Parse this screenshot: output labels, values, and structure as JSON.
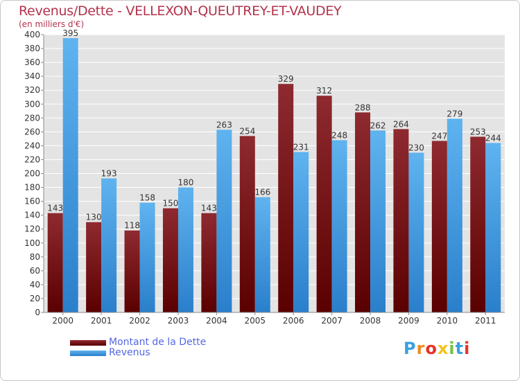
{
  "chart_data": {
    "type": "bar",
    "title": "Revenus/Dette - VELLEXON-QUEUTREY-ET-VAUDEY",
    "subtitle": "(en milliers d'€)",
    "xlabel": "",
    "ylabel": "(en milliers d'€)",
    "ylim": [
      0,
      400
    ],
    "ytick_step": 20,
    "grid": true,
    "legend_position": "bottom-left",
    "categories": [
      "2000",
      "2001",
      "2002",
      "2003",
      "2004",
      "2005",
      "2006",
      "2007",
      "2008",
      "2009",
      "2010",
      "2011"
    ],
    "series": [
      {
        "name": "Montant de la Dette",
        "color": "#7a1c22",
        "values": [
          143,
          130,
          118,
          150,
          143,
          254,
          329,
          312,
          288,
          264,
          247,
          253
        ]
      },
      {
        "name": "Revenus",
        "color": "#4aa3e6",
        "values": [
          395,
          193,
          158,
          180,
          263,
          166,
          231,
          248,
          262,
          230,
          279,
          244
        ]
      }
    ]
  },
  "logo": {
    "text": "Proxiti",
    "colors": [
      "#3aa0e0",
      "#f08a1e",
      "#e8302a",
      "#f3c21b",
      "#7bbf3a",
      "#3aa0e0",
      "#e8302a"
    ]
  }
}
